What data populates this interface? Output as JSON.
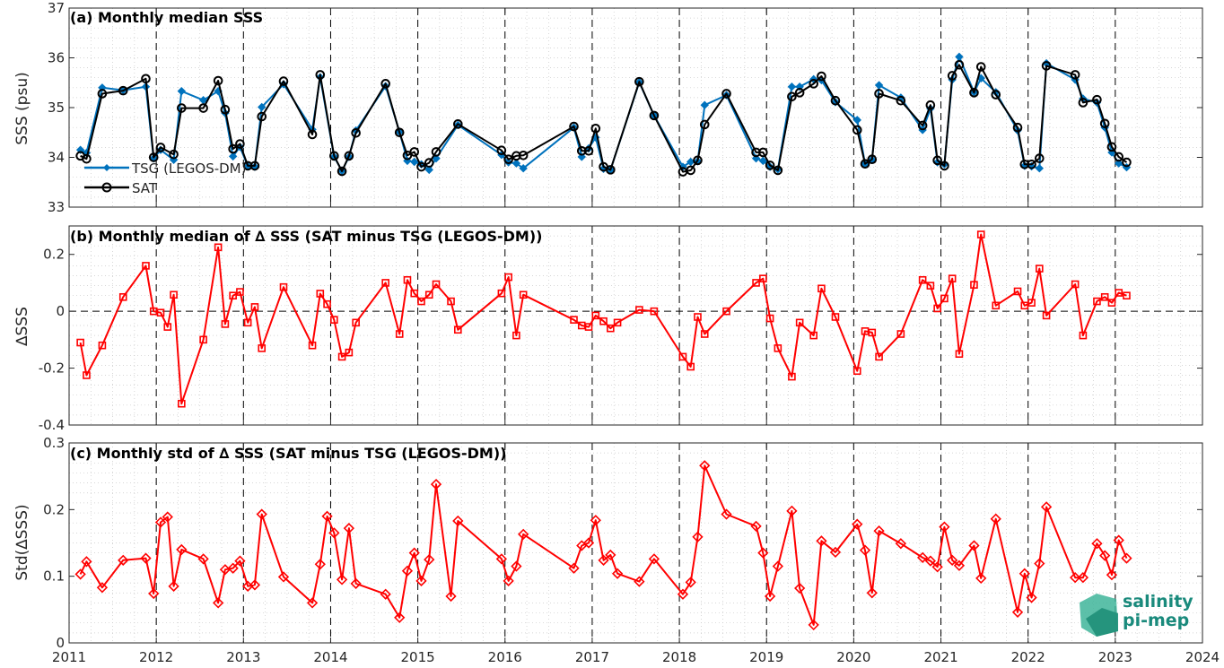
{
  "chart_data": [
    {
      "type": "line",
      "title": "(a) Monthly median SSS",
      "ylabel": "SSS (psu)",
      "xlabel": "",
      "xlim": [
        2011,
        2024
      ],
      "ylim": [
        33,
        37
      ],
      "yticks": [
        "33",
        "34",
        "35",
        "36",
        "37"
      ],
      "grid": true,
      "legend_position": "bottom-left",
      "series": [
        {
          "name": "TSG (LEGOS-DM)",
          "color": "#0072bd",
          "marker": "diamond",
          "x": [
            2011.13,
            2011.2,
            2011.38,
            2011.62,
            2011.88,
            2011.97,
            2012.05,
            2012.2,
            2012.29,
            2012.54,
            2012.71,
            2012.79,
            2012.88,
            2012.96,
            2013.05,
            2013.13,
            2013.21,
            2013.46,
            2013.79,
            2013.88,
            2014.04,
            2014.13,
            2014.21,
            2014.29,
            2014.63,
            2014.79,
            2014.88,
            2014.96,
            2015.04,
            2015.13,
            2015.21,
            2015.46,
            2015.96,
            2016.04,
            2016.13,
            2016.21,
            2016.79,
            2016.88,
            2016.96,
            2017.04,
            2017.13,
            2017.21,
            2017.54,
            2017.71,
            2018.04,
            2018.13,
            2018.21,
            2018.29,
            2018.54,
            2018.88,
            2018.96,
            2019.04,
            2019.13,
            2019.29,
            2019.38,
            2019.54,
            2019.63,
            2019.79,
            2020.04,
            2020.13,
            2020.21,
            2020.29,
            2020.54,
            2020.79,
            2020.88,
            2020.96,
            2021.04,
            2021.13,
            2021.21,
            2021.38,
            2021.46,
            2021.63,
            2021.88,
            2021.96,
            2022.04,
            2022.13,
            2022.21,
            2022.54,
            2022.63,
            2022.79,
            2022.88,
            2022.96,
            2023.04,
            2023.13
          ],
          "values": [
            34.15,
            34.09,
            35.4,
            35.35,
            35.42,
            33.98,
            34.15,
            33.95,
            35.33,
            35.15,
            35.33,
            34.89,
            34.02,
            34.21,
            33.82,
            33.81,
            35.01,
            35.47,
            34.56,
            35.61,
            34.01,
            33.73,
            34.01,
            34.54,
            35.43,
            34.51,
            33.93,
            33.91,
            33.86,
            33.75,
            33.98,
            34.65,
            34.05,
            33.9,
            33.88,
            33.78,
            34.6,
            34.01,
            34.18,
            34.4,
            33.77,
            33.75,
            35.51,
            34.84,
            33.81,
            33.91,
            33.92,
            35.05,
            35.25,
            33.98,
            33.93,
            33.81,
            33.76,
            35.42,
            35.42,
            35.57,
            35.55,
            35.11,
            34.75,
            33.87,
            33.95,
            35.45,
            35.2,
            34.55,
            34.98,
            33.9,
            33.86,
            35.56,
            36.02,
            35.31,
            35.59,
            35.31,
            34.54,
            33.83,
            33.82,
            33.78,
            35.89,
            35.56,
            35.18,
            35.1,
            34.6,
            34.1,
            33.88,
            33.8
          ]
        },
        {
          "name": "SAT",
          "color": "#000000",
          "marker": "circle",
          "x": [
            2011.13,
            2011.2,
            2011.38,
            2011.62,
            2011.88,
            2011.97,
            2012.05,
            2012.2,
            2012.29,
            2012.54,
            2012.71,
            2012.79,
            2012.88,
            2012.96,
            2013.05,
            2013.13,
            2013.21,
            2013.46,
            2013.79,
            2013.88,
            2014.04,
            2014.13,
            2014.21,
            2014.29,
            2014.63,
            2014.79,
            2014.88,
            2014.96,
            2015.04,
            2015.13,
            2015.21,
            2015.46,
            2015.96,
            2016.04,
            2016.13,
            2016.21,
            2016.79,
            2016.88,
            2016.96,
            2017.04,
            2017.13,
            2017.21,
            2017.54,
            2017.71,
            2018.04,
            2018.13,
            2018.21,
            2018.29,
            2018.54,
            2018.88,
            2018.96,
            2019.04,
            2019.13,
            2019.29,
            2019.38,
            2019.54,
            2019.63,
            2019.79,
            2020.04,
            2020.13,
            2020.21,
            2020.29,
            2020.54,
            2020.79,
            2020.88,
            2020.96,
            2021.04,
            2021.13,
            2021.21,
            2021.38,
            2021.46,
            2021.63,
            2021.88,
            2021.96,
            2022.04,
            2022.13,
            2022.21,
            2022.54,
            2022.63,
            2022.79,
            2022.88,
            2022.96,
            2023.04,
            2023.13
          ],
          "values": [
            34.03,
            33.97,
            35.28,
            35.34,
            35.58,
            34.0,
            34.2,
            34.06,
            34.99,
            34.99,
            35.54,
            34.96,
            34.17,
            34.27,
            33.83,
            33.83,
            34.82,
            35.53,
            34.46,
            35.66,
            34.03,
            33.72,
            34.03,
            34.49,
            35.48,
            34.5,
            34.04,
            34.11,
            33.81,
            33.89,
            34.11,
            34.67,
            34.14,
            33.96,
            34.03,
            34.04,
            34.62,
            34.13,
            34.13,
            34.58,
            33.81,
            33.75,
            35.52,
            34.84,
            33.71,
            33.74,
            33.94,
            34.66,
            35.28,
            34.1,
            34.1,
            33.84,
            33.74,
            35.22,
            35.3,
            35.48,
            35.63,
            35.14,
            34.55,
            33.87,
            33.96,
            35.28,
            35.14,
            34.64,
            35.05,
            33.94,
            33.83,
            35.64,
            35.86,
            35.3,
            35.82,
            35.26,
            34.6,
            33.86,
            33.86,
            33.98,
            35.84,
            35.66,
            35.1,
            35.16,
            34.68,
            34.21,
            34.01,
            33.9
          ]
        }
      ]
    },
    {
      "type": "line",
      "title": "(b) Monthly median of ∆ SSS (SAT minus TSG (LEGOS-DM))",
      "ylabel": "∆SSS",
      "xlabel": "",
      "xlim": [
        2011,
        2024
      ],
      "ylim": [
        -0.4,
        0.3
      ],
      "yticks": [
        "-0.4",
        "-0.2",
        "0",
        "0.2"
      ],
      "grid": true,
      "series": [
        {
          "color": "#ff0000",
          "marker": "square",
          "x": [
            2011.13,
            2011.2,
            2011.38,
            2011.62,
            2011.88,
            2011.97,
            2012.05,
            2012.13,
            2012.2,
            2012.29,
            2012.54,
            2012.71,
            2012.79,
            2012.88,
            2012.96,
            2013.05,
            2013.13,
            2013.21,
            2013.46,
            2013.79,
            2013.88,
            2013.96,
            2014.04,
            2014.13,
            2014.21,
            2014.29,
            2014.63,
            2014.79,
            2014.88,
            2014.96,
            2015.04,
            2015.13,
            2015.21,
            2015.38,
            2015.46,
            2015.96,
            2016.04,
            2016.13,
            2016.21,
            2016.79,
            2016.88,
            2016.96,
            2017.04,
            2017.13,
            2017.21,
            2017.29,
            2017.54,
            2017.71,
            2018.04,
            2018.13,
            2018.21,
            2018.29,
            2018.54,
            2018.88,
            2018.96,
            2019.04,
            2019.13,
            2019.29,
            2019.38,
            2019.54,
            2019.63,
            2019.79,
            2020.04,
            2020.13,
            2020.21,
            2020.29,
            2020.54,
            2020.79,
            2020.88,
            2020.96,
            2021.04,
            2021.13,
            2021.21,
            2021.38,
            2021.46,
            2021.63,
            2021.88,
            2021.96,
            2022.04,
            2022.13,
            2022.21,
            2022.54,
            2022.63,
            2022.79,
            2022.88,
            2022.96,
            2023.04,
            2023.13
          ],
          "values": [
            -0.11,
            -0.225,
            -0.12,
            0.05,
            0.16,
            0.0,
            -0.005,
            -0.055,
            0.058,
            -0.325,
            -0.1,
            0.225,
            -0.045,
            0.055,
            0.068,
            -0.04,
            0.015,
            -0.13,
            0.085,
            -0.12,
            0.062,
            0.025,
            -0.03,
            -0.16,
            -0.145,
            -0.04,
            0.1,
            -0.08,
            0.11,
            0.063,
            0.035,
            0.058,
            0.095,
            0.035,
            -0.065,
            0.063,
            0.12,
            -0.085,
            0.058,
            -0.03,
            -0.05,
            -0.055,
            -0.015,
            -0.035,
            -0.06,
            -0.04,
            0.005,
            0.0,
            -0.16,
            -0.195,
            -0.02,
            -0.08,
            0.0,
            0.1,
            0.115,
            -0.025,
            -0.13,
            -0.23,
            -0.04,
            -0.085,
            0.08,
            -0.02,
            -0.21,
            -0.07,
            -0.075,
            -0.16,
            -0.08,
            0.11,
            0.09,
            0.01,
            0.045,
            0.115,
            -0.15,
            0.093,
            0.27,
            0.02,
            0.07,
            0.02,
            0.03,
            0.15,
            -0.015,
            0.095,
            -0.085,
            0.035,
            0.05,
            0.03,
            0.065,
            0.055
          ]
        }
      ]
    },
    {
      "type": "line",
      "title": "(c) Monthly std of ∆ SSS (SAT minus TSG (LEGOS-DM))",
      "ylabel": "Std(∆SSS)",
      "xlabel": "",
      "xlim": [
        2011,
        2024
      ],
      "ylim": [
        0,
        0.3
      ],
      "yticks": [
        "0",
        "0.1",
        "0.2",
        "0.3"
      ],
      "xticks": [
        "2011",
        "2012",
        "2013",
        "2014",
        "2015",
        "2016",
        "2017",
        "2018",
        "2019",
        "2020",
        "2021",
        "2022",
        "2023",
        "2024"
      ],
      "grid": true,
      "series": [
        {
          "color": "#ff0000",
          "marker": "diamond",
          "x": [
            2011.13,
            2011.2,
            2011.38,
            2011.62,
            2011.88,
            2011.97,
            2012.05,
            2012.13,
            2012.2,
            2012.29,
            2012.54,
            2012.71,
            2012.79,
            2012.88,
            2012.96,
            2013.05,
            2013.13,
            2013.21,
            2013.46,
            2013.79,
            2013.88,
            2013.96,
            2014.04,
            2014.13,
            2014.21,
            2014.29,
            2014.63,
            2014.79,
            2014.88,
            2014.96,
            2015.04,
            2015.13,
            2015.21,
            2015.38,
            2015.46,
            2015.96,
            2016.04,
            2016.13,
            2016.21,
            2016.79,
            2016.88,
            2016.96,
            2017.04,
            2017.13,
            2017.21,
            2017.29,
            2017.54,
            2017.71,
            2018.04,
            2018.13,
            2018.21,
            2018.29,
            2018.54,
            2018.88,
            2018.96,
            2019.04,
            2019.13,
            2019.29,
            2019.38,
            2019.54,
            2019.63,
            2019.79,
            2020.04,
            2020.13,
            2020.21,
            2020.29,
            2020.54,
            2020.79,
            2020.88,
            2020.96,
            2021.04,
            2021.13,
            2021.21,
            2021.38,
            2021.46,
            2021.63,
            2021.88,
            2021.96,
            2022.04,
            2022.13,
            2022.21,
            2022.54,
            2022.63,
            2022.79,
            2022.88,
            2022.96,
            2023.04,
            2023.13
          ],
          "values": [
            0.103,
            0.122,
            0.083,
            0.124,
            0.127,
            0.074,
            0.181,
            0.189,
            0.085,
            0.14,
            0.126,
            0.06,
            0.11,
            0.112,
            0.123,
            0.085,
            0.087,
            0.193,
            0.099,
            0.06,
            0.118,
            0.19,
            0.165,
            0.095,
            0.172,
            0.089,
            0.073,
            0.038,
            0.108,
            0.135,
            0.093,
            0.125,
            0.238,
            0.07,
            0.183,
            0.126,
            0.093,
            0.115,
            0.163,
            0.112,
            0.146,
            0.15,
            0.184,
            0.124,
            0.132,
            0.104,
            0.092,
            0.126,
            0.073,
            0.091,
            0.159,
            0.266,
            0.193,
            0.175,
            0.135,
            0.07,
            0.115,
            0.198,
            0.082,
            0.027,
            0.153,
            0.136,
            0.178,
            0.139,
            0.075,
            0.168,
            0.149,
            0.128,
            0.123,
            0.114,
            0.174,
            0.124,
            0.116,
            0.146,
            0.097,
            0.186,
            0.046,
            0.104,
            0.068,
            0.119,
            0.204,
            0.098,
            0.098,
            0.149,
            0.131,
            0.102,
            0.154,
            0.127
          ]
        }
      ]
    }
  ],
  "logo": {
    "line1": "salinity",
    "line2": "pi-mep"
  }
}
